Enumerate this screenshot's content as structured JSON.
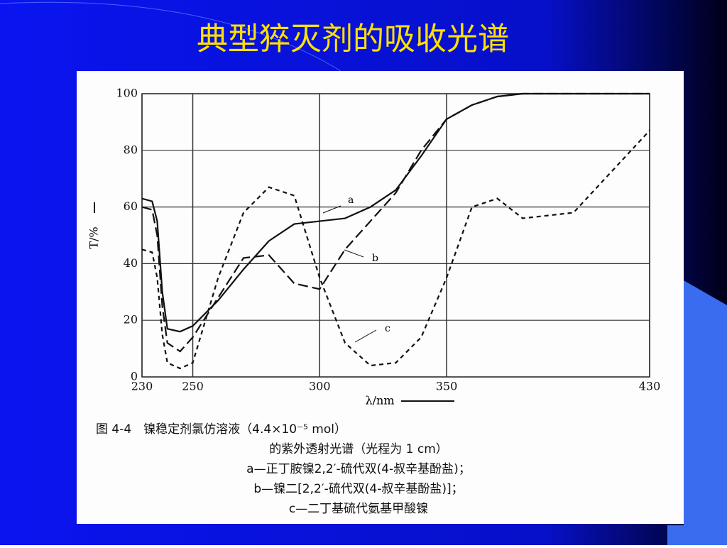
{
  "chart_data": {
    "type": "line",
    "title": "典型猝灭剂的吸收光谱",
    "x_label": "λ/nm",
    "y_label": "T/%",
    "caption": [
      "图 4-4　镍稳定剂氯仿溶液（4.4×10⁻⁵ mol）",
      "的紫外透射光谱（光程为 1 cm）",
      "a—正丁胺镍2,2′-硫代双(4-叔辛基酚盐)；",
      "b—镍二[2,2′-硫代双(4-叔辛基酚盐)]；",
      "c—二丁基硫代氨基甲酸镍"
    ],
    "x": [
      230,
      234,
      236,
      238,
      240,
      245,
      250,
      260,
      270,
      280,
      290,
      300,
      310,
      320,
      330,
      340,
      350,
      360,
      370,
      380,
      400,
      430
    ],
    "series": [
      {
        "name": "a",
        "color": "#111111",
        "dash": "solid",
        "values": [
          63,
          62,
          55,
          30,
          17,
          16,
          18,
          27,
          38,
          48,
          54,
          55,
          56,
          60,
          66,
          78,
          91,
          96,
          99,
          100,
          100,
          100
        ]
      },
      {
        "name": "b",
        "color": "#111111",
        "dash": "long",
        "values": [
          60,
          59,
          50,
          25,
          12,
          9,
          14,
          28,
          42,
          43,
          33,
          31,
          45,
          55,
          65,
          80,
          91,
          96,
          99,
          100,
          100,
          100
        ]
      },
      {
        "name": "c",
        "color": "#111111",
        "dash": "short",
        "values": [
          45,
          44,
          35,
          15,
          5,
          3,
          5,
          35,
          58,
          67,
          64,
          35,
          12,
          4,
          5,
          14,
          35,
          60,
          63,
          56,
          58,
          87
        ]
      }
    ],
    "xlim": [
      230,
      430
    ],
    "ylim": [
      0,
      100
    ],
    "xticks": [
      230,
      250,
      300,
      350,
      430
    ],
    "yticks": [
      0,
      20,
      40,
      60,
      80,
      100
    ],
    "grid": true
  }
}
